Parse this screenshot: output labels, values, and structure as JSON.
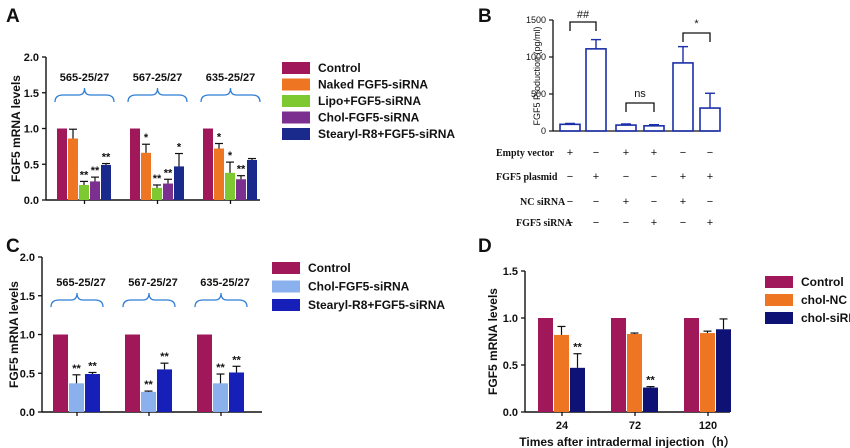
{
  "chart_data": [
    {
      "panel": "A",
      "type": "bar",
      "ylabel": "FGF5 mRNA levels",
      "ylim": [
        0,
        2.0
      ],
      "yticks": [
        "0.0",
        "0.5",
        "1.0",
        "1.5",
        "2.0"
      ],
      "groups": [
        "565-25/27",
        "567-25/27",
        "635-25/27"
      ],
      "series": [
        {
          "name": "Control",
          "color": "#a0185a",
          "values": [
            1.0,
            1.0,
            1.0
          ],
          "err": [
            0,
            0,
            0
          ],
          "sig": [
            "",
            "",
            ""
          ]
        },
        {
          "name": "Naked FGF5-siRNA",
          "color": "#ee7522",
          "values": [
            0.86,
            0.66,
            0.72
          ],
          "err": [
            0.13,
            0.12,
            0.07
          ],
          "sig": [
            "",
            "*",
            "*"
          ]
        },
        {
          "name": "Lipo+FGF5-siRNA",
          "color": "#7ec832",
          "values": [
            0.21,
            0.17,
            0.38
          ],
          "err": [
            0.05,
            0.04,
            0.15
          ],
          "sig": [
            "**",
            "**",
            "*"
          ]
        },
        {
          "name": "Chol-FGF5-siRNA",
          "color": "#7b2f8e",
          "values": [
            0.26,
            0.23,
            0.29
          ],
          "err": [
            0.06,
            0.06,
            0.05
          ],
          "sig": [
            "**",
            "**",
            "**"
          ]
        },
        {
          "name": "Stearyl-R8+FGF5-siRNA",
          "color": "#1a2a8c",
          "values": [
            0.49,
            0.47,
            0.56
          ],
          "err": [
            0.02,
            0.18,
            0.02
          ],
          "sig": [
            "**",
            "*",
            ""
          ]
        }
      ],
      "legend": "right"
    },
    {
      "panel": "B",
      "type": "bar",
      "ylabel": "FGF5 Production (pg/ml)",
      "ylim": [
        0,
        1500
      ],
      "yticks": [
        "0",
        "500",
        "1000",
        "1500"
      ],
      "bars": [
        {
          "value": 90,
          "err": 12
        },
        {
          "value": 1110,
          "err": 125
        },
        {
          "value": 80,
          "err": 15
        },
        {
          "value": 70,
          "err": 15
        },
        {
          "value": 920,
          "err": 220
        },
        {
          "value": 310,
          "err": 200
        }
      ],
      "brackets": [
        {
          "from": 0,
          "to": 1,
          "label": "##"
        },
        {
          "from": 2,
          "to": 3,
          "label": "ns"
        },
        {
          "from": 4,
          "to": 5,
          "label": "*"
        }
      ],
      "table": [
        {
          "label": "Empty vector",
          "marks": [
            "+",
            "−",
            "+",
            "+",
            "−",
            "−"
          ]
        },
        {
          "label": "FGF5 plasmid",
          "marks": [
            "−",
            "+",
            "−",
            "−",
            "+",
            "+"
          ]
        },
        {
          "label": "NC siRNA",
          "marks": [
            "−",
            "−",
            "+",
            "−",
            "+",
            "−"
          ]
        },
        {
          "label": "FGF5 siRNA",
          "marks": [
            "−",
            "−",
            "−",
            "+",
            "−",
            "+"
          ]
        }
      ],
      "color": "#1a2fa8"
    },
    {
      "panel": "C",
      "type": "bar",
      "ylabel": "FGF5 mRNA  levels",
      "ylim": [
        0,
        2.0
      ],
      "yticks": [
        "0.0",
        "0.5",
        "1.0",
        "1.5",
        "2.0"
      ],
      "groups": [
        "565-25/27",
        "567-25/27",
        "635-25/27"
      ],
      "series": [
        {
          "name": "Control",
          "color": "#a0185a",
          "values": [
            1.0,
            1.0,
            1.0
          ],
          "err": [
            0,
            0,
            0
          ],
          "sig": [
            "",
            "",
            ""
          ]
        },
        {
          "name": "Chol-FGF5-siRNA",
          "color": "#8ab0ee",
          "values": [
            0.37,
            0.26,
            0.37
          ],
          "err": [
            0.11,
            0.01,
            0.12
          ],
          "sig": [
            "**",
            "**",
            "**"
          ]
        },
        {
          "name": "Stearyl-R8+FGF5-siRNA",
          "color": "#1620b8",
          "values": [
            0.49,
            0.55,
            0.51
          ],
          "err": [
            0.02,
            0.08,
            0.08
          ],
          "sig": [
            "**",
            "**",
            "**"
          ]
        }
      ],
      "legend": "right"
    },
    {
      "panel": "D",
      "type": "bar",
      "ylabel": "FGF5 mRNA  levels",
      "xlabel": "Times after intradermal injection（h）",
      "ylim": [
        0,
        1.5
      ],
      "yticks": [
        "0.0",
        "0.5",
        "1.0",
        "1.5"
      ],
      "categories": [
        "24",
        "72",
        "120"
      ],
      "series": [
        {
          "name": "Control",
          "color": "#a0185a",
          "values": [
            1.0,
            1.0,
            1.0
          ],
          "err": [
            0,
            0,
            0
          ],
          "sig": [
            "",
            "",
            ""
          ]
        },
        {
          "name": "chol-NC",
          "color": "#ee7522",
          "values": [
            0.82,
            0.83,
            0.84
          ],
          "err": [
            0.09,
            0.01,
            0.02
          ],
          "sig": [
            "",
            "",
            ""
          ]
        },
        {
          "name": "chol-siRNA",
          "color": "#0e1275",
          "values": [
            0.47,
            0.26,
            0.88
          ],
          "err": [
            0.15,
            0.01,
            0.11
          ],
          "sig": [
            "**",
            "**",
            ""
          ]
        }
      ],
      "legend": "right"
    }
  ]
}
